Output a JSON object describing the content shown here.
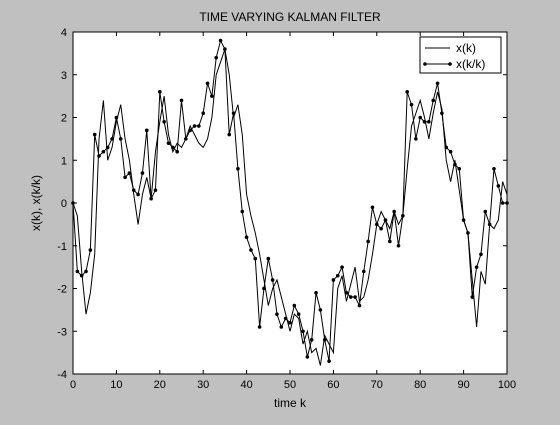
{
  "figure": {
    "background": "#c0c0c0",
    "axes_background": "#ffffff",
    "line_color": "#000000"
  },
  "chart_data": {
    "type": "line",
    "title": "TIME VARYING KALMAN FILTER",
    "xlabel": "time k",
    "ylabel": "x(k), x(k/k)",
    "xlim": [
      0,
      100
    ],
    "ylim": [
      -4,
      4
    ],
    "xticks": [
      0,
      10,
      20,
      30,
      40,
      50,
      60,
      70,
      80,
      90,
      100
    ],
    "yticks": [
      -4,
      -3,
      -2,
      -1,
      0,
      1,
      2,
      3,
      4
    ],
    "grid": false,
    "legend_position": "top-right",
    "x": [
      0,
      1,
      2,
      3,
      4,
      5,
      6,
      7,
      8,
      9,
      10,
      11,
      12,
      13,
      14,
      15,
      16,
      17,
      18,
      19,
      20,
      21,
      22,
      23,
      24,
      25,
      26,
      27,
      28,
      29,
      30,
      31,
      32,
      33,
      34,
      35,
      36,
      37,
      38,
      39,
      40,
      41,
      42,
      43,
      44,
      45,
      46,
      47,
      48,
      49,
      50,
      51,
      52,
      53,
      54,
      55,
      56,
      57,
      58,
      59,
      60,
      61,
      62,
      63,
      64,
      65,
      66,
      67,
      68,
      69,
      70,
      71,
      72,
      73,
      74,
      75,
      76,
      77,
      78,
      79,
      80,
      81,
      82,
      83,
      84,
      85,
      86,
      87,
      88,
      89,
      90,
      91,
      92,
      93,
      94,
      95,
      96,
      97,
      98,
      99,
      100
    ],
    "series": [
      {
        "name": "x(k)",
        "marker": "none",
        "values": [
          0.0,
          -0.3,
          -1.6,
          -2.6,
          -2.1,
          -1.2,
          1.5,
          2.4,
          1.0,
          1.3,
          1.9,
          2.3,
          1.5,
          1.0,
          0.2,
          -0.5,
          0.2,
          0.6,
          0.1,
          1.2,
          1.9,
          2.5,
          1.6,
          1.2,
          1.4,
          1.3,
          1.5,
          1.8,
          1.6,
          1.4,
          1.3,
          1.5,
          2.0,
          3.0,
          3.3,
          3.6,
          3.0,
          2.0,
          2.3,
          1.6,
          0.2,
          -0.3,
          -0.7,
          -1.2,
          -1.8,
          -2.4,
          -2.0,
          -1.8,
          -2.2,
          -2.6,
          -3.0,
          -2.6,
          -2.7,
          -3.3,
          -3.0,
          -3.5,
          -3.4,
          -3.8,
          -3.1,
          -3.3,
          -3.5,
          -2.0,
          -1.7,
          -2.3,
          -1.9,
          -1.5,
          -2.3,
          -2.2,
          -1.8,
          -1.2,
          -0.5,
          -0.2,
          -0.4,
          -0.6,
          -0.2,
          -0.5,
          -0.3,
          0.8,
          1.8,
          2.1,
          2.4,
          2.0,
          1.5,
          2.1,
          2.6,
          2.2,
          1.0,
          0.5,
          1.0,
          0.3,
          -0.4,
          -0.7,
          -1.8,
          -2.9,
          -1.6,
          -1.9,
          -0.5,
          -0.6,
          -0.4,
          0.5,
          0.2
        ]
      },
      {
        "name": "x(k/k)",
        "marker": "dot",
        "values": [
          0.0,
          -1.6,
          -1.7,
          -1.6,
          -1.1,
          1.6,
          1.1,
          1.2,
          1.3,
          1.5,
          2.0,
          1.5,
          0.6,
          0.7,
          0.3,
          0.2,
          0.7,
          1.7,
          0.1,
          0.3,
          2.6,
          1.9,
          1.4,
          1.3,
          1.2,
          2.4,
          1.5,
          1.7,
          1.8,
          1.8,
          2.1,
          2.8,
          2.5,
          3.4,
          3.8,
          3.6,
          1.6,
          2.1,
          0.8,
          -0.2,
          -0.8,
          -1.1,
          -1.3,
          -2.9,
          -2.0,
          -1.3,
          -1.8,
          -2.6,
          -2.9,
          -2.7,
          -2.8,
          -2.4,
          -2.6,
          -3.0,
          -3.6,
          -3.2,
          -2.1,
          -2.5,
          -3.2,
          -3.7,
          -1.8,
          -1.7,
          -1.5,
          -2.1,
          -2.2,
          -2.2,
          -2.4,
          -1.6,
          -0.9,
          -0.1,
          -0.5,
          -0.6,
          -0.4,
          -0.9,
          -0.2,
          -1.0,
          -0.3,
          2.6,
          2.3,
          1.5,
          2.0,
          1.9,
          1.9,
          2.4,
          2.8,
          2.1,
          1.3,
          1.2,
          0.9,
          0.8,
          -0.4,
          -0.7,
          -2.2,
          -1.5,
          -1.2,
          -0.2,
          -0.5,
          0.8,
          0.4,
          0.0,
          0.0
        ]
      }
    ]
  }
}
